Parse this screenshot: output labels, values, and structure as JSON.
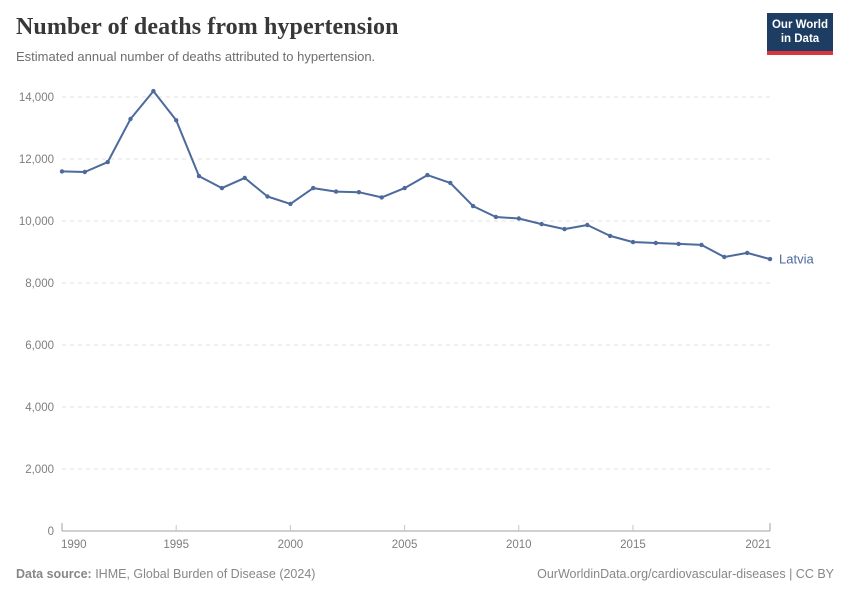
{
  "header": {
    "title": "Number of deaths from hypertension",
    "subtitle": "Estimated annual number of deaths attributed to hypertension.",
    "logo": {
      "line1": "Our World",
      "line2": "in Data",
      "bg_color": "#1d3d63",
      "accent_color": "#d7373f"
    }
  },
  "chart_data": {
    "type": "line",
    "title": "Number of deaths from hypertension",
    "xlabel": "",
    "ylabel": "",
    "x": [
      1990,
      1991,
      1992,
      1993,
      1994,
      1995,
      1996,
      1997,
      1998,
      1999,
      2000,
      2001,
      2002,
      2003,
      2004,
      2005,
      2006,
      2007,
      2008,
      2009,
      2010,
      2011,
      2012,
      2013,
      2014,
      2015,
      2016,
      2017,
      2018,
      2019,
      2020,
      2021
    ],
    "series": [
      {
        "name": "Latvia",
        "color": "#4C6A9C",
        "values": [
          11600,
          11580,
          11900,
          13290,
          14190,
          13250,
          11450,
          11060,
          11390,
          10790,
          10550,
          11060,
          10950,
          10930,
          10760,
          11060,
          11480,
          11230,
          10480,
          10130,
          10080,
          9900,
          9740,
          9870,
          9520,
          9320,
          9290,
          9260,
          9230,
          8840,
          8970,
          8770
        ]
      }
    ],
    "xticks": [
      1990,
      1995,
      2000,
      2005,
      2010,
      2015,
      2021
    ],
    "yticks": [
      0,
      2000,
      4000,
      6000,
      8000,
      10000,
      12000,
      14000
    ],
    "ylim": [
      0,
      14000
    ],
    "grid": "horizontal-dashed",
    "legend": "end-of-line-label"
  },
  "footer": {
    "source_label": "Data source:",
    "source_text": " IHME, Global Burden of Disease (2024)",
    "attribution": "OurWorldinData.org/cardiovascular-diseases | CC BY"
  }
}
